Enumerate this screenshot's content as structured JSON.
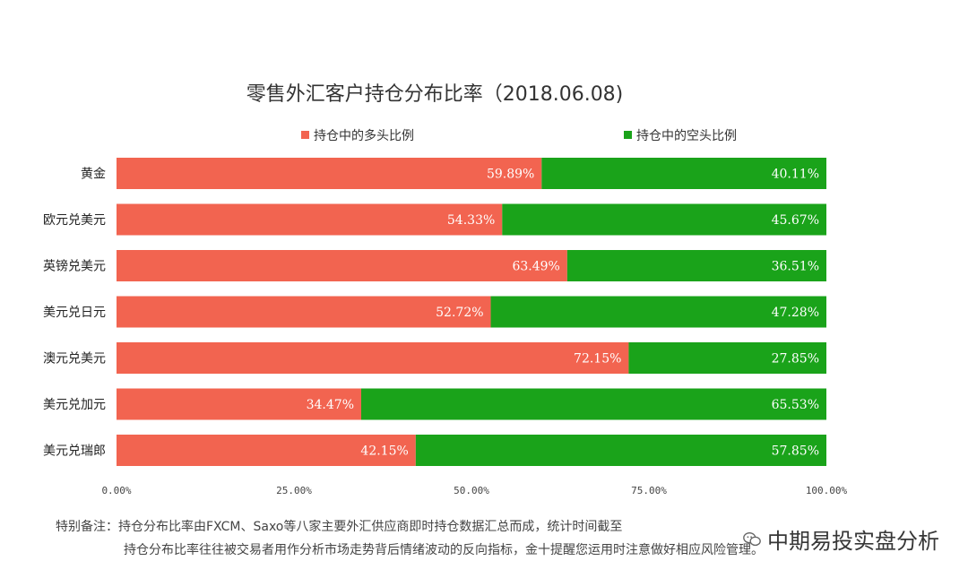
{
  "chart_data": {
    "type": "bar",
    "orientation": "horizontal",
    "stacked": true,
    "title": "零售外汇客户持仓分布比率（2018.06.08)",
    "categories": [
      "黄金",
      "欧元兑美元",
      "英镑兑美元",
      "美元兑日元",
      "澳元兑美元",
      "美元兑加元",
      "美元兑瑞郎"
    ],
    "series": [
      {
        "name": "持仓中的多头比例",
        "color": "#f26450",
        "values": [
          59.89,
          54.33,
          63.49,
          52.72,
          72.15,
          34.47,
          42.15
        ],
        "labels": [
          "59.89%",
          "54.33%",
          "63.49%",
          "52.72%",
          "72.15%",
          "34.47%",
          "42.15%"
        ]
      },
      {
        "name": "持仓中的空头比例",
        "color": "#1aa31a",
        "values": [
          40.11,
          45.67,
          36.51,
          47.28,
          27.85,
          65.53,
          57.85
        ],
        "labels": [
          "40.11%",
          "45.67%",
          "36.51%",
          "47.28%",
          "27.85%",
          "65.53%",
          "57.85%"
        ]
      }
    ],
    "xlim": [
      0,
      100
    ],
    "xticks": [
      0,
      25,
      50,
      75,
      100
    ],
    "xtick_labels": [
      "0.00%",
      "25.00%",
      "50.00%",
      "75.00%",
      "100.00%"
    ],
    "legend_position": "top",
    "grid": false
  },
  "notes": {
    "line1": "特别备注：持仓分布比率由FXCM、Saxo等八家主要外汇供应商即时持仓数据汇总而成，统计时间截至",
    "line2": "持仓分布比率往往被交易者用作分析市场走势背后情绪波动的反向指标，金十提醒您运用时注意做好相应风险管理。"
  },
  "watermark": {
    "text": "中期易投实盘分析",
    "icon": "wechat-icon"
  }
}
